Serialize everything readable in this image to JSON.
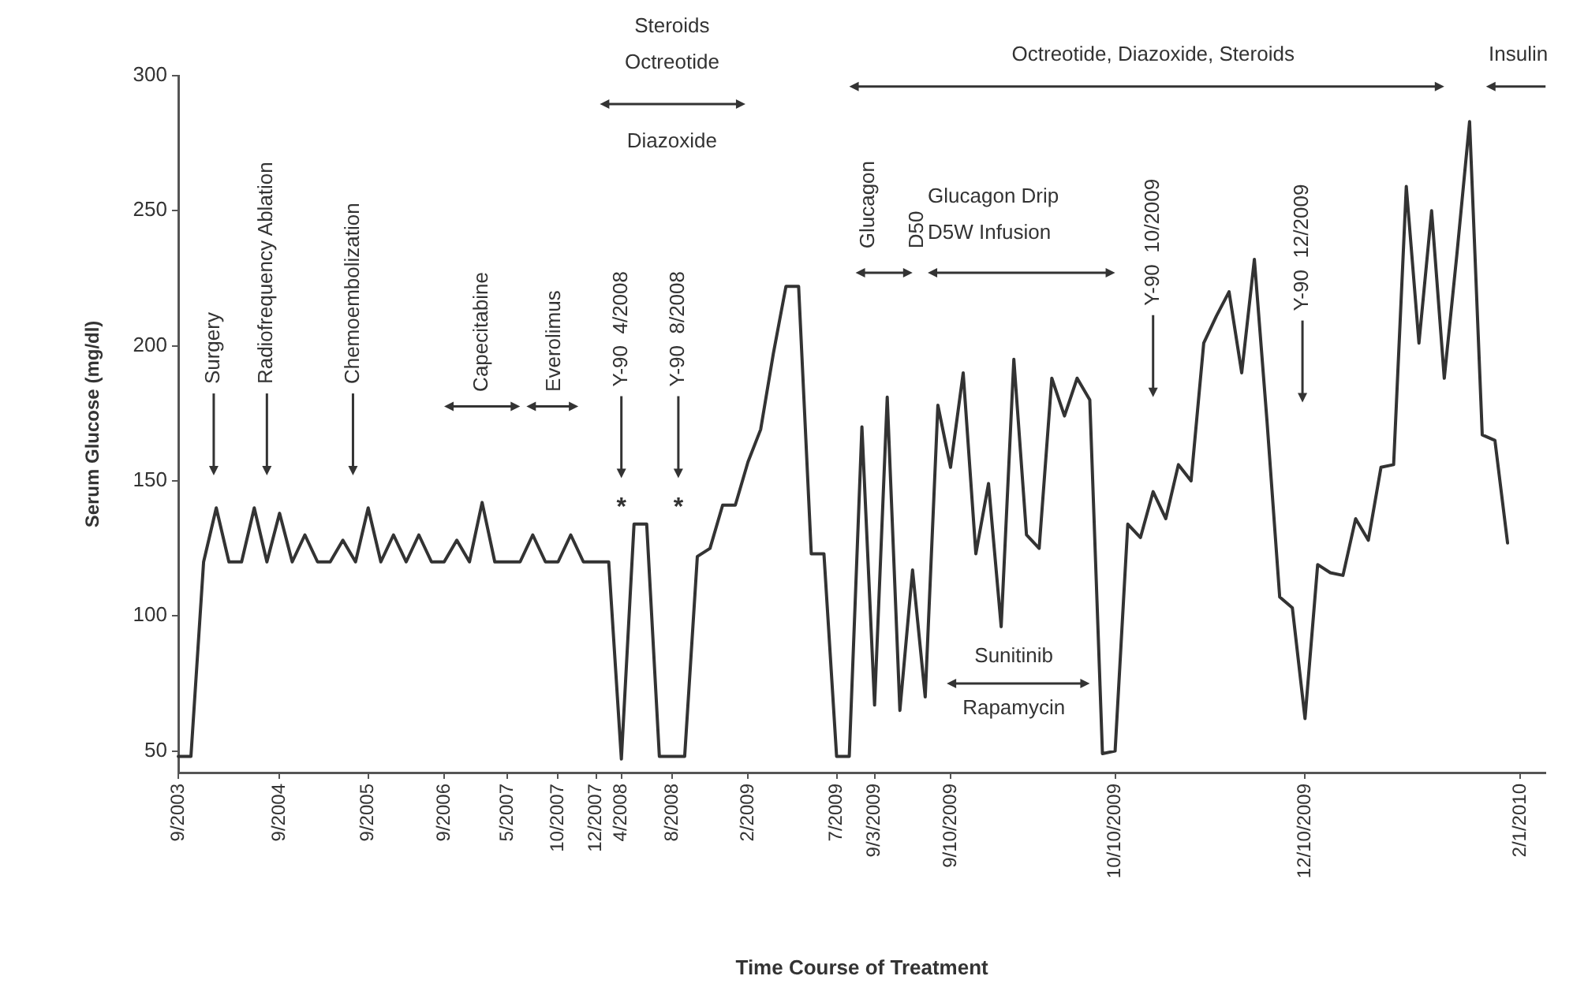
{
  "chart_data": {
    "type": "line",
    "xlabel": "Time Course of Treatment",
    "ylabel": "Serum Glucose (mg/dl)",
    "categories": [
      "9/2003",
      null,
      null,
      null,
      null,
      null,
      null,
      null,
      "9/2004",
      null,
      null,
      null,
      null,
      null,
      null,
      "9/2005",
      null,
      null,
      null,
      null,
      null,
      "9/2006",
      null,
      null,
      null,
      null,
      "5/2007",
      null,
      null,
      null,
      "10/2007",
      null,
      null,
      "12/2007",
      null,
      "4/2008",
      null,
      null,
      null,
      "8/2008",
      null,
      null,
      null,
      null,
      null,
      "2/2009",
      null,
      null,
      null,
      null,
      null,
      null,
      "7/2009",
      null,
      null,
      "9/3/2009",
      null,
      null,
      null,
      null,
      null,
      "9/10/2009",
      null,
      null,
      null,
      null,
      null,
      null,
      null,
      null,
      null,
      null,
      null,
      null,
      "10/10/2009",
      null,
      null,
      null,
      null,
      null,
      null,
      null,
      null,
      null,
      null,
      null,
      null,
      null,
      null,
      "12/10/2009",
      null,
      null,
      null,
      null,
      null,
      null,
      null,
      null,
      null,
      null,
      null,
      null,
      null,
      null,
      null,
      null,
      "2/1/2010",
      null,
      null
    ],
    "series": [
      {
        "color": "#333333",
        "values": [
          48,
          48,
          120,
          140,
          120,
          120,
          140,
          120,
          138,
          120,
          130,
          120,
          120,
          128,
          120,
          140,
          120,
          130,
          120,
          130,
          120,
          120,
          128,
          120,
          142,
          120,
          120,
          120,
          130,
          120,
          120,
          130,
          120,
          120,
          120,
          47,
          134,
          134,
          48,
          48,
          48,
          122,
          125,
          141,
          141,
          157,
          169,
          197,
          222,
          222,
          123,
          123,
          48,
          48,
          170,
          67,
          181,
          65,
          117,
          70,
          178,
          155,
          190,
          123,
          149,
          96,
          195,
          130,
          125,
          188,
          174,
          188,
          180,
          49,
          50,
          134,
          129,
          146,
          136,
          156,
          150,
          201,
          211,
          220,
          190,
          232,
          172,
          107,
          103,
          62,
          119,
          116,
          115,
          136,
          128,
          155,
          156,
          259,
          201,
          250,
          188,
          234,
          283,
          167,
          165,
          127,
          null,
          null,
          null
        ]
      }
    ],
    "ylim": [
      42,
      300
    ],
    "yticks": [
      50,
      100,
      150,
      200,
      250,
      300
    ],
    "grid": false,
    "legend": false,
    "marker": "none",
    "line_style": "solid",
    "annotations": [
      "Surgery",
      "Radiofrequency Ablation",
      "Chemoembolization",
      "Capecitabine",
      "Everolimus",
      "Y-90  4/2008",
      "*",
      "Y-90  8/2008",
      "*",
      "Steroids",
      "Octreotide",
      "Diazoxide",
      "Octreotide, Diazoxide, Steroids",
      "Insulin",
      "Glucagon",
      "D50",
      "Glucagon Drip",
      "D5W Infusion",
      "Y-90  10/2009",
      "Y-90  12/2009",
      "Sunitinib",
      "Rapamycin"
    ]
  }
}
